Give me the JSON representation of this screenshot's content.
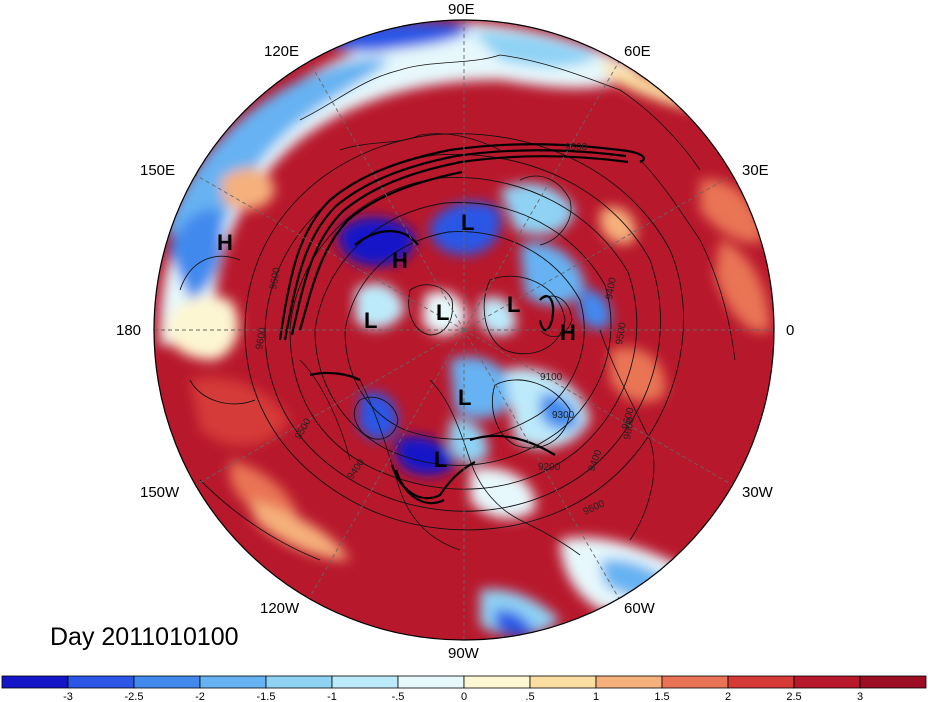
{
  "title": "Day 2011010100",
  "longitude_labels": {
    "top": "90E",
    "top_right": "60E",
    "right_upper": "30E",
    "right": "0",
    "right_lower": "30W",
    "bottom_right": "60W",
    "bottom": "90W",
    "bottom_left": "120W",
    "left_lower": "150W",
    "left": "180",
    "left_upper": "150E",
    "top_left": "120E"
  },
  "pressure_systems": [
    {
      "label": "H",
      "id": "h-north-pacific"
    },
    {
      "label": "H",
      "id": "h-siberia"
    },
    {
      "label": "H",
      "id": "h-europe"
    },
    {
      "label": "L",
      "id": "l-kara"
    },
    {
      "label": "L",
      "id": "l-beaufort"
    },
    {
      "label": "L",
      "id": "l-pole"
    },
    {
      "label": "L",
      "id": "l-barents"
    },
    {
      "label": "L",
      "id": "l-baffin"
    },
    {
      "label": "L",
      "id": "l-hudson"
    }
  ],
  "contour_labels": [
    "9600",
    "9600",
    "9400",
    "9500",
    "9600",
    "9600",
    "9500",
    "9400",
    "9100",
    "9200",
    "9300",
    "9400",
    "9500",
    "9600"
  ],
  "colorbar": {
    "tick_labels": [
      "-3",
      "-2.5",
      "-2",
      "-1.5",
      "-1",
      "-.5",
      "0",
      ".5",
      "1",
      "1.5",
      "2",
      "2.5",
      "3"
    ],
    "colors": [
      "#1515c8",
      "#2b56e6",
      "#4289ee",
      "#66b2f2",
      "#8fd2f4",
      "#bdeafa",
      "#e6f8fc",
      "#fdf6d2",
      "#fbdfa2",
      "#f5b07c",
      "#e97455",
      "#d53a37",
      "#b8182c",
      "#9a0d22"
    ]
  }
}
